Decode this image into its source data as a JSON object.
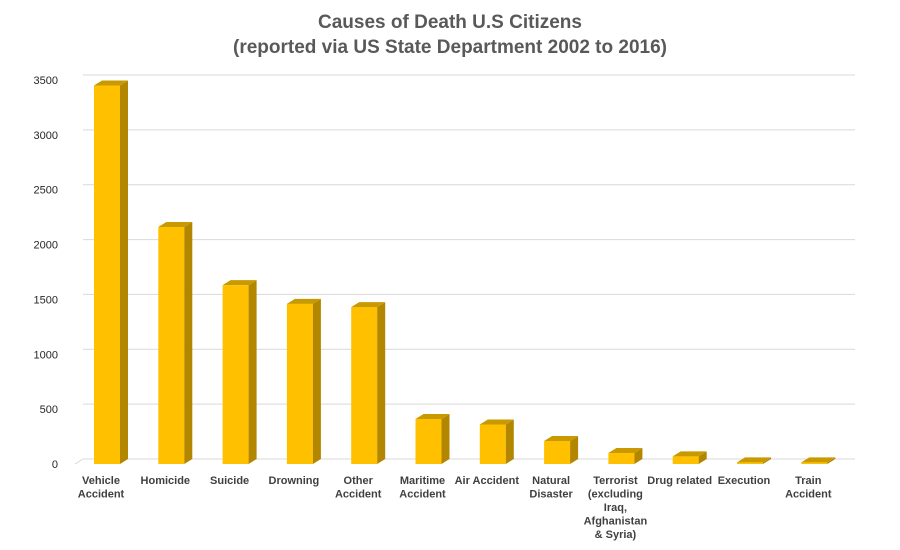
{
  "chart_data": {
    "type": "bar",
    "title": "Causes of Death U.S Citizens",
    "subtitle": "(reported via US State Department 2002 to 2016)",
    "xlabel": "",
    "ylabel": "",
    "ylim": [
      0,
      3500
    ],
    "yticks": [
      0,
      500,
      1000,
      1500,
      2000,
      2500,
      3000,
      3500
    ],
    "grid": true,
    "bar_color": "#FFC000",
    "bar_side_color": "#B38600",
    "bar_top_color": "#C99A00",
    "categories": [
      [
        "Vehicle",
        "Accident"
      ],
      [
        "Homicide"
      ],
      [
        "Suicide"
      ],
      [
        "Drowning"
      ],
      [
        "Other",
        "Accident"
      ],
      [
        "Maritime",
        "Accident"
      ],
      [
        "Air Accident"
      ],
      [
        "Natural",
        "Disaster"
      ],
      [
        "Terrorist",
        "(excluding",
        "Iraq,",
        "Afghanistan",
        "& Syria)"
      ],
      [
        "Drug related"
      ],
      [
        "Execution"
      ],
      [
        "Train",
        "Accident"
      ]
    ],
    "values": [
      3450,
      2160,
      1630,
      1460,
      1430,
      410,
      360,
      210,
      100,
      70,
      15,
      15
    ]
  }
}
